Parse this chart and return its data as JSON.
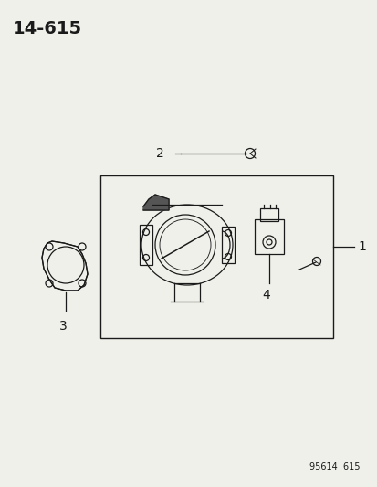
{
  "title": "14–615",
  "background_color": "#f0f0eb",
  "line_color": "#1a1a1a",
  "footer_text": "95614  615",
  "label_1": "1",
  "label_2": "2",
  "label_3": "3",
  "label_4": "4"
}
